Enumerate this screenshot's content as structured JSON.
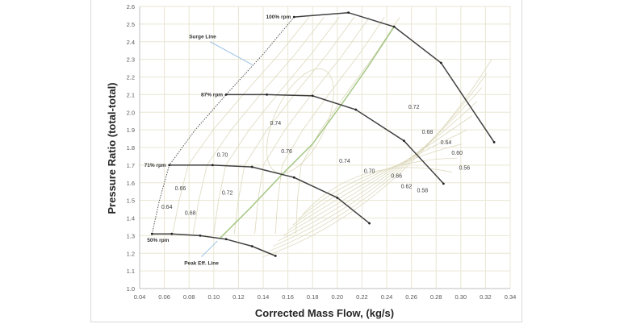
{
  "chart_data": {
    "type": "line",
    "title": "",
    "xlabel": "Corrected Mass Flow, (kg/s)",
    "ylabel": "Pressure Ratio (total-total)",
    "xlim": [
      0.04,
      0.34
    ],
    "ylim": [
      1.0,
      2.6
    ],
    "xticks": [
      "0.04",
      "0.06",
      "0.08",
      "0.10",
      "0.12",
      "0.14",
      "0.16",
      "0.18",
      "0.20",
      "0.22",
      "0.24",
      "0.26",
      "0.28",
      "0.30",
      "0.32",
      "0.34"
    ],
    "yticks": [
      "1.0",
      "1.1",
      "1.2",
      "1.3",
      "1.4",
      "1.5",
      "1.6",
      "1.7",
      "1.8",
      "1.9",
      "2.0",
      "2.1",
      "2.2",
      "2.3",
      "2.4",
      "2.5",
      "2.6"
    ],
    "grid": true,
    "colors": {
      "speed_line": "#404040",
      "peak_eff_line": "#a9c98a",
      "surge_line": "#555555",
      "grid": "#e9e6d3",
      "contour": "#ddd9bd",
      "leader": "#9dc3e6"
    },
    "speed_lines": [
      {
        "label": "100% rpm",
        "points": [
          [
            0.165,
            2.54
          ],
          [
            0.209,
            2.565
          ],
          [
            0.246,
            2.485
          ],
          [
            0.284,
            2.28
          ],
          [
            0.327,
            1.83
          ]
        ]
      },
      {
        "label": "87% rpm",
        "points": [
          [
            0.11,
            2.1
          ],
          [
            0.143,
            2.1
          ],
          [
            0.18,
            2.093
          ],
          [
            0.215,
            2.015
          ],
          [
            0.254,
            1.838
          ],
          [
            0.286,
            1.595
          ]
        ]
      },
      {
        "label": "71% rpm",
        "points": [
          [
            0.064,
            1.7
          ],
          [
            0.099,
            1.7
          ],
          [
            0.131,
            1.69
          ],
          [
            0.165,
            1.63
          ],
          [
            0.2,
            1.515
          ],
          [
            0.226,
            1.37
          ]
        ]
      },
      {
        "label": "50% rpm",
        "points": [
          [
            0.05,
            1.31
          ],
          [
            0.066,
            1.31
          ],
          [
            0.089,
            1.3
          ],
          [
            0.11,
            1.28
          ],
          [
            0.131,
            1.24
          ],
          [
            0.15,
            1.185
          ]
        ]
      }
    ],
    "surge_line": {
      "label": "Surge Line",
      "points": [
        [
          0.05,
          1.31
        ],
        [
          0.056,
          1.5
        ],
        [
          0.064,
          1.7
        ],
        [
          0.085,
          1.9
        ],
        [
          0.11,
          2.1
        ],
        [
          0.14,
          2.33
        ],
        [
          0.165,
          2.54
        ]
      ]
    },
    "peak_eff_line": {
      "label": "Peak Eff. Line",
      "points": [
        [
          0.105,
          1.285
        ],
        [
          0.13,
          1.46
        ],
        [
          0.155,
          1.645
        ],
        [
          0.18,
          1.82
        ],
        [
          0.203,
          2.04
        ],
        [
          0.225,
          2.26
        ],
        [
          0.246,
          2.485
        ]
      ]
    },
    "efficiency_labels": [
      {
        "text": "0.74",
        "x": 0.15,
        "y": 1.94
      },
      {
        "text": "0.70",
        "x": 0.107,
        "y": 1.76
      },
      {
        "text": "0.76",
        "x": 0.159,
        "y": 1.78
      },
      {
        "text": "0.66",
        "x": 0.073,
        "y": 1.57
      },
      {
        "text": "0.72",
        "x": 0.111,
        "y": 1.545
      },
      {
        "text": "0.64",
        "x": 0.062,
        "y": 1.465
      },
      {
        "text": "0.68",
        "x": 0.081,
        "y": 1.43
      },
      {
        "text": "0.74",
        "x": 0.206,
        "y": 1.725
      },
      {
        "text": "0.70",
        "x": 0.226,
        "y": 1.667
      },
      {
        "text": "0.66",
        "x": 0.248,
        "y": 1.64
      },
      {
        "text": "0.62",
        "x": 0.256,
        "y": 1.58
      },
      {
        "text": "0.58",
        "x": 0.269,
        "y": 1.557
      },
      {
        "text": "0.72",
        "x": 0.262,
        "y": 2.03
      },
      {
        "text": "0.68",
        "x": 0.273,
        "y": 1.89
      },
      {
        "text": "0.64",
        "x": 0.288,
        "y": 1.83
      },
      {
        "text": "0.60",
        "x": 0.297,
        "y": 1.77
      },
      {
        "text": "0.56",
        "x": 0.303,
        "y": 1.685
      }
    ]
  }
}
